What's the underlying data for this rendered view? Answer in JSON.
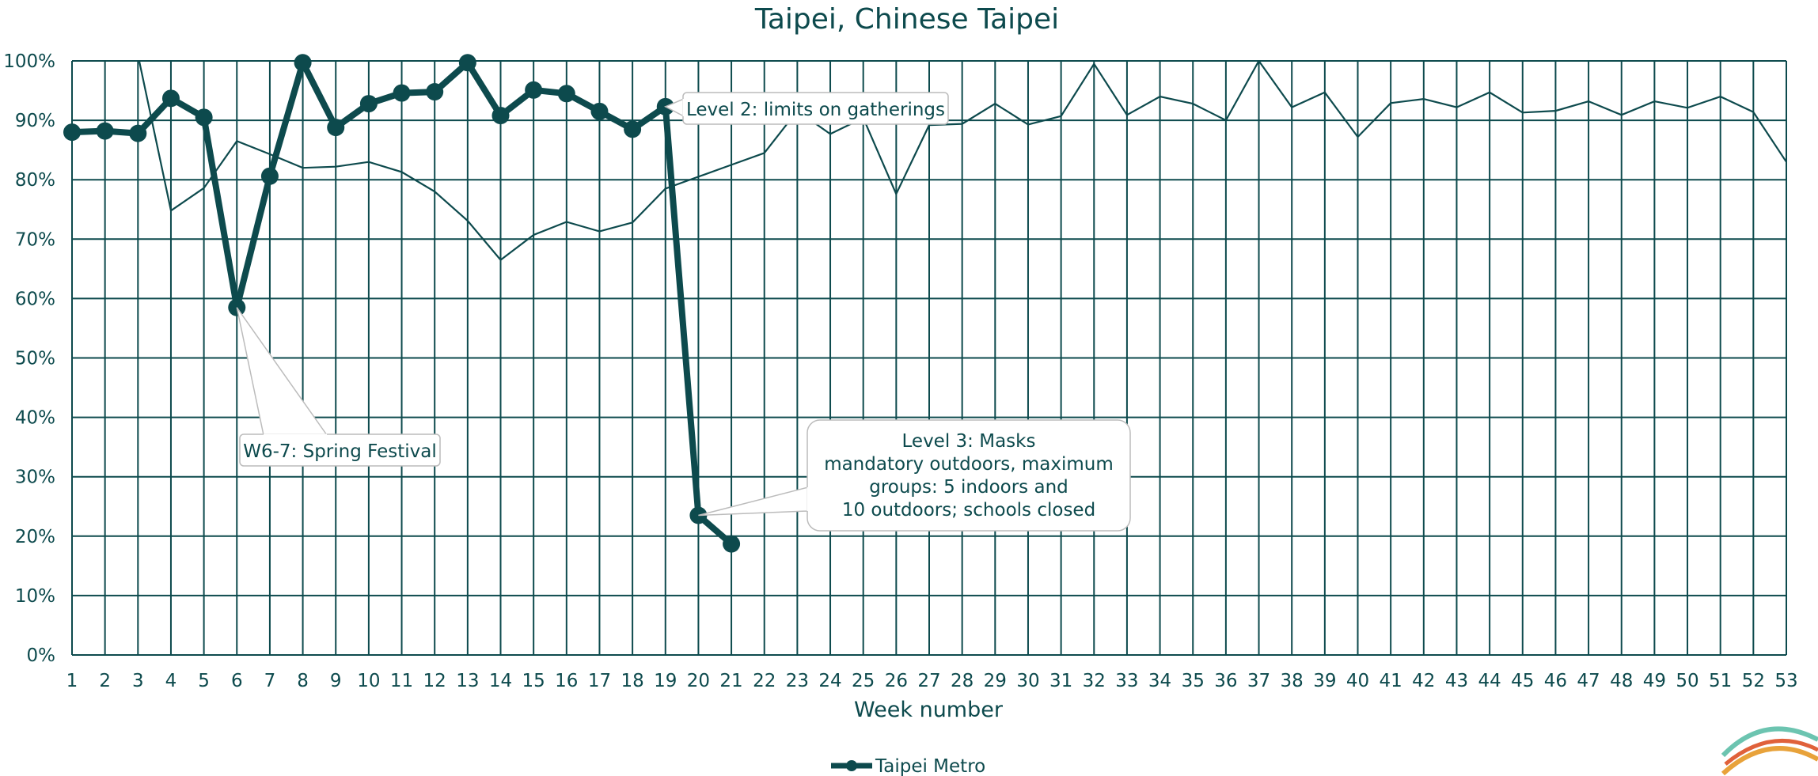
{
  "chart_data": {
    "type": "line",
    "title": "Taipei, Chinese Taipei",
    "xlabel": "Week number",
    "ylabel": "",
    "ylim": [
      0,
      100
    ],
    "y_tick_labels": [
      "0%",
      "10%",
      "20%",
      "30%",
      "40%",
      "50%",
      "60%",
      "70%",
      "80%",
      "90%",
      "100%"
    ],
    "x_categories": [
      1,
      2,
      3,
      4,
      5,
      6,
      7,
      8,
      9,
      10,
      11,
      12,
      13,
      14,
      15,
      16,
      17,
      18,
      19,
      20,
      21,
      22,
      23,
      24,
      25,
      26,
      27,
      28,
      29,
      30,
      31,
      32,
      33,
      34,
      35,
      36,
      37,
      38,
      39,
      40,
      41,
      42,
      43,
      44,
      45,
      46,
      47,
      48,
      49,
      50,
      51,
      52,
      53
    ],
    "grid": true,
    "legend_position": "bottom-center",
    "colors": {
      "main": "#0d4a4d"
    },
    "series": [
      {
        "name": "Taipei Metro",
        "style": "thick-with-markers",
        "values": [
          88,
          88.2,
          87.8,
          93.7,
          90.5,
          58.5,
          80.6,
          99.7,
          88.8,
          92.8,
          94.6,
          94.8,
          99.7,
          90.8,
          95.1,
          94.5,
          91.5,
          88.5,
          92.3,
          23.5,
          18.7
        ]
      },
      {
        "name": "",
        "style": "thin",
        "values": [
          null,
          null,
          101,
          74.8,
          78.6,
          86.5,
          84.3,
          82,
          82.2,
          83,
          81.3,
          78,
          73.1,
          66.5,
          70.7,
          72.9,
          71.3,
          72.8,
          78.5,
          80.5,
          82.5,
          84.5,
          91.6,
          87.7,
          90.4,
          77.6,
          89.2,
          89.4,
          92.8,
          89.3,
          90.7,
          99.5,
          90.9,
          94,
          92.8,
          90,
          100,
          92.2,
          94.7,
          87.2,
          92.9,
          93.6,
          92.2,
          94.7,
          91.3,
          91.6,
          93.2,
          90.9,
          93.2,
          92.1,
          94,
          91.4,
          83
        ]
      }
    ],
    "annotations": [
      {
        "text": "Level 2: limits on gatherings",
        "point_week": 19
      },
      {
        "text": "W6-7: Spring Festival",
        "point_week": 6
      },
      {
        "text": "Level 3: Masks mandatory outdoors, maximum groups: 5 indoors and 10 outdoors; schools closed",
        "point_week": 20
      }
    ]
  }
}
